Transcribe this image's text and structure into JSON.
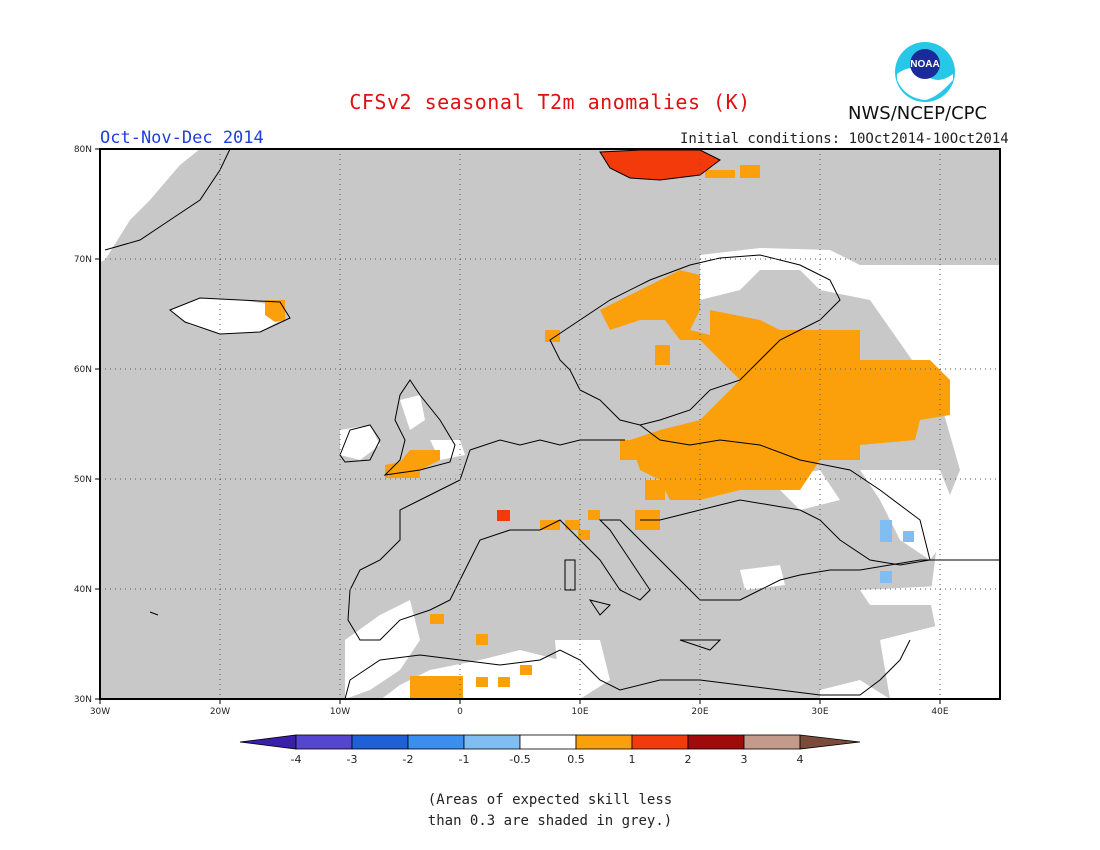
{
  "header": {
    "title": "CFSv2 seasonal T2m anomalies (K)",
    "season": "Oct-Nov-Dec 2014",
    "initial_conditions": "Initial conditions: 10Oct2014-10Oct2014",
    "agency": "NWS/NCEP/CPC",
    "logo_text": "NOAA"
  },
  "map": {
    "region": "Europe",
    "lon_ticks": [
      "30W",
      "20W",
      "10W",
      "0",
      "10E",
      "20E",
      "30E",
      "40E"
    ],
    "lat_ticks": [
      "80N",
      "70N",
      "60N",
      "50N",
      "40N",
      "30N"
    ],
    "lon_range": [
      -30,
      45
    ],
    "lat_range": [
      30,
      80
    ],
    "grid": "dotted",
    "colors": {
      "grey_low_skill": "#c8c8c8",
      "background": "#ffffff",
      "coast": "#000000"
    }
  },
  "colorbar": {
    "labels": [
      "-4",
      "-3",
      "-2",
      "-1",
      "-0.5",
      "0.5",
      "1",
      "2",
      "3",
      "4"
    ],
    "colors": [
      "#3a1fa8",
      "#5646cf",
      "#1f5fd8",
      "#3c8df0",
      "#80bdf3",
      "#ffffff",
      "#fba00a",
      "#f23a0a",
      "#a00a0a",
      "#c49a8a",
      "#7a4a3a"
    ]
  },
  "note": {
    "line1": "(Areas of expected skill less",
    "line2": "than 0.3 are shaded in grey.)"
  }
}
